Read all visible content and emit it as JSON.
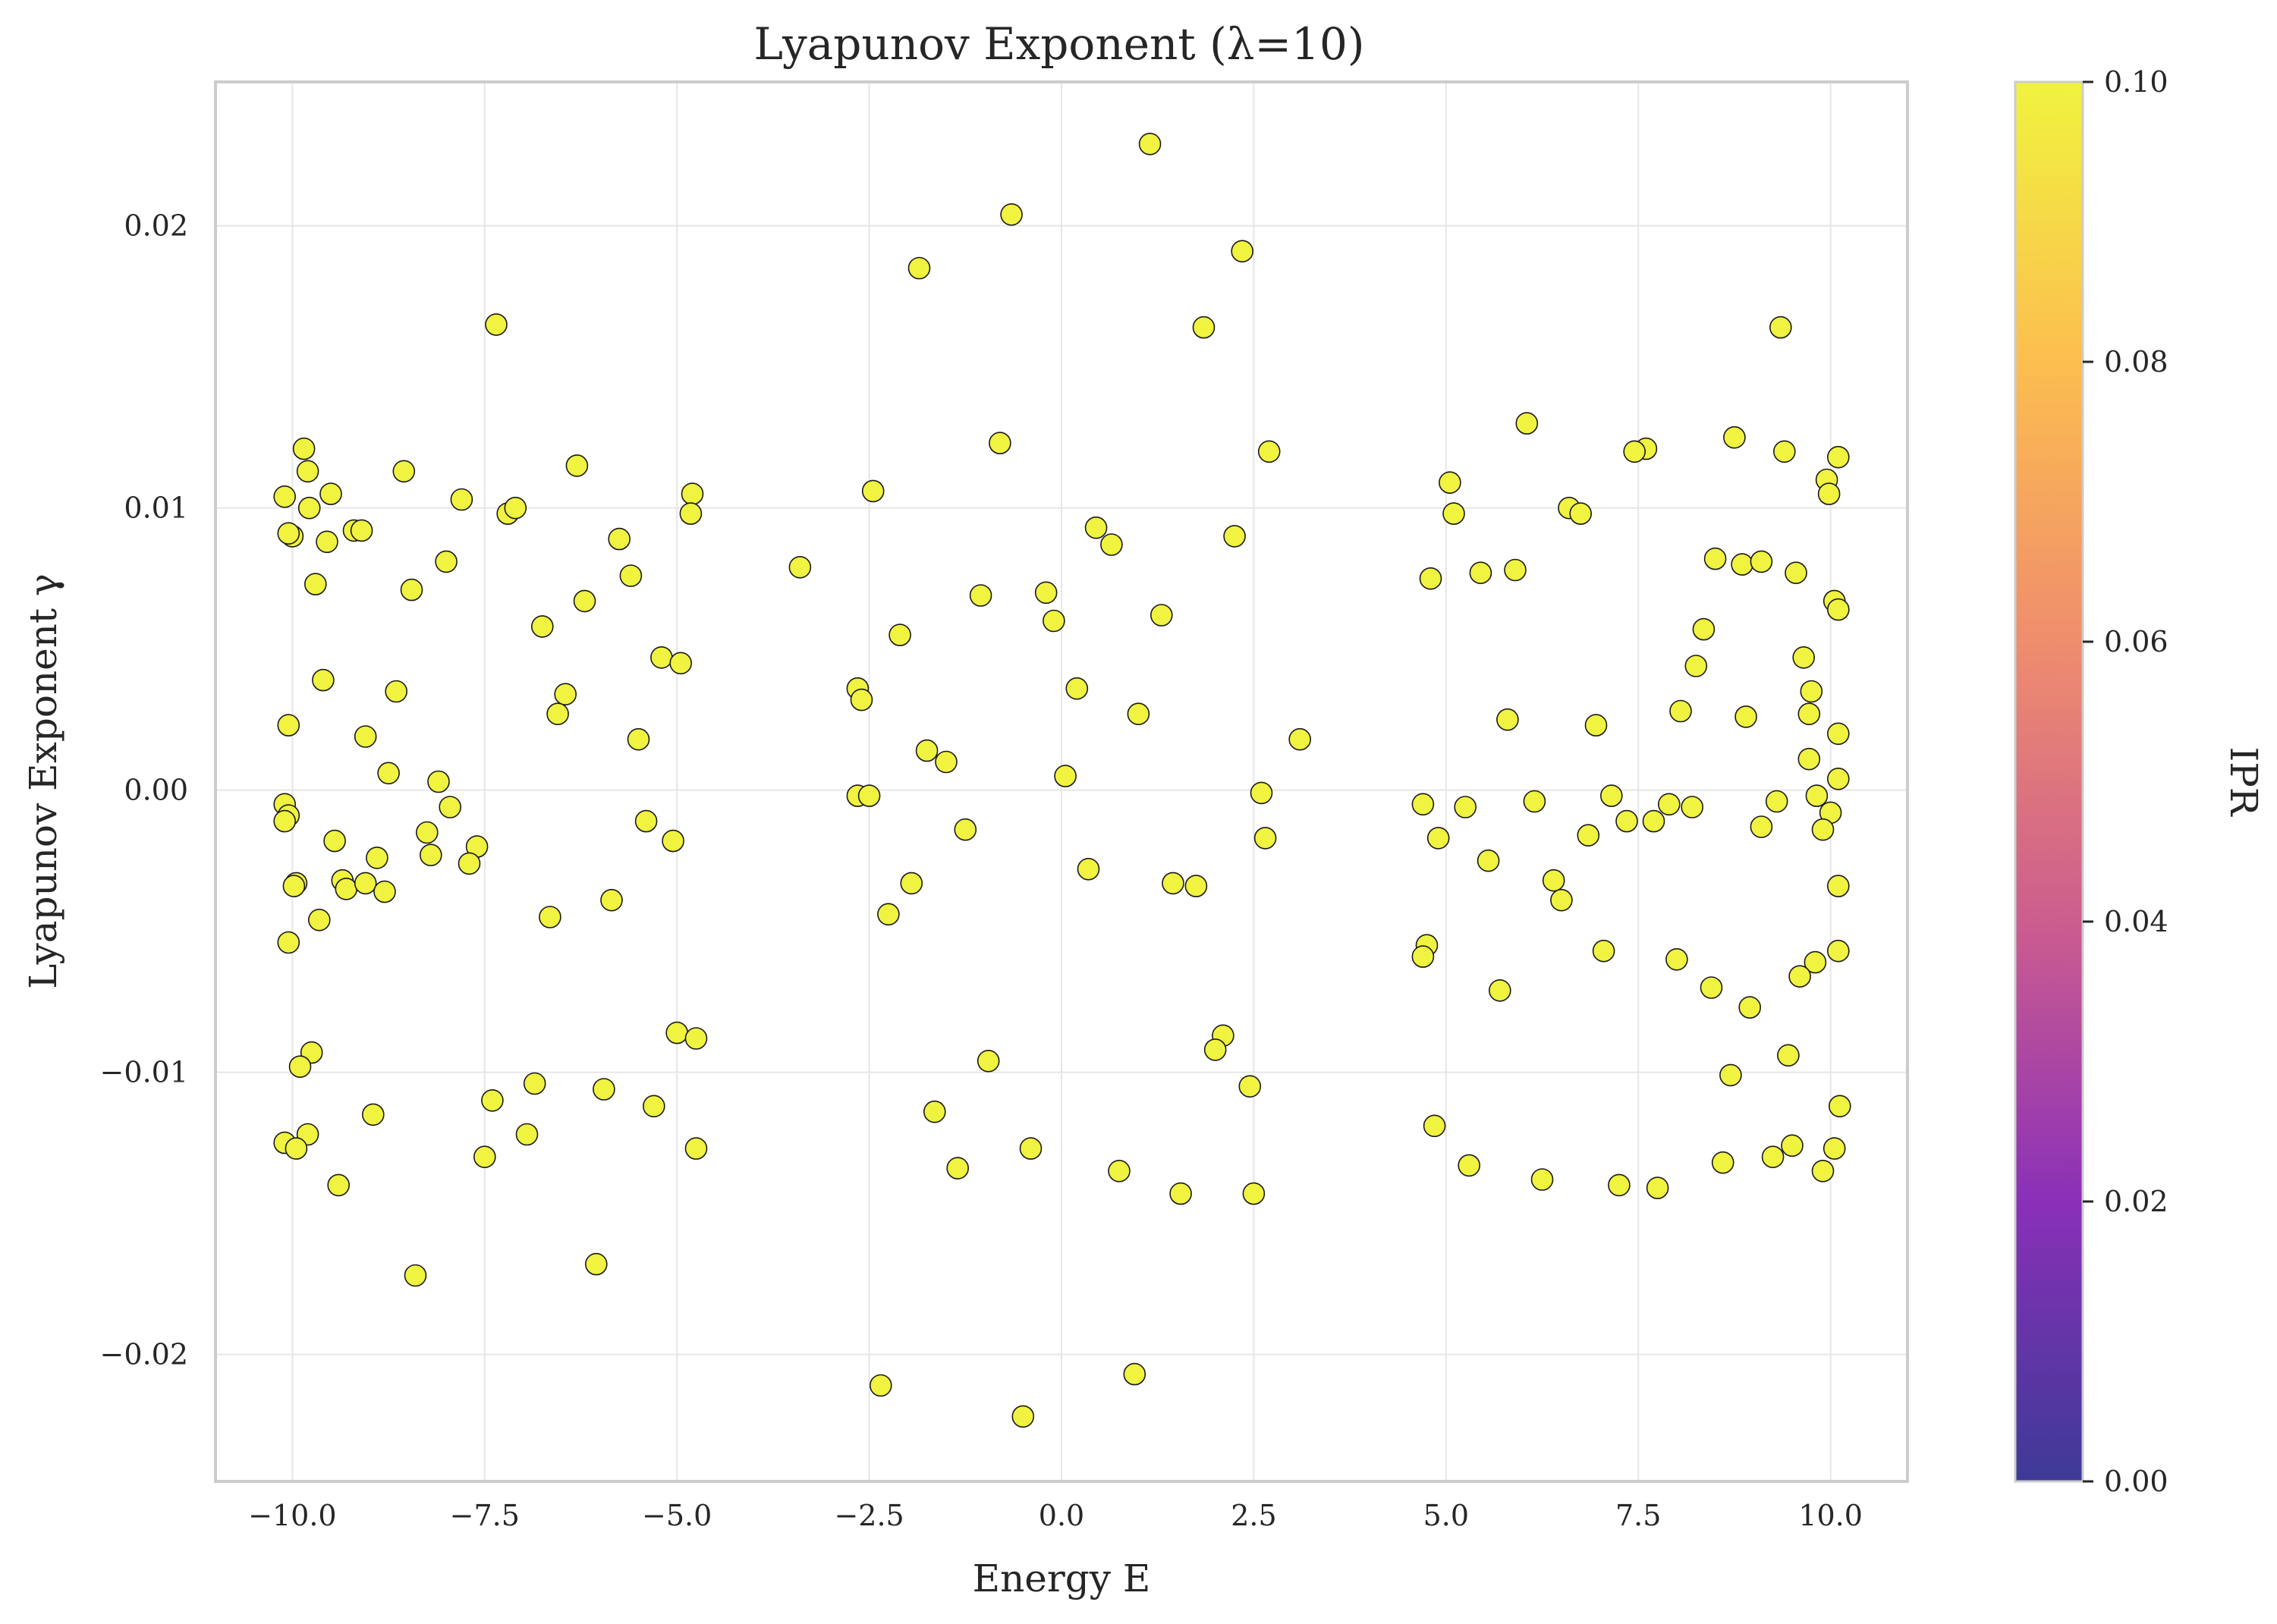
{
  "chart_data": {
    "type": "scatter",
    "title": "Lyapunov Exponent (λ=10)",
    "xlabel": "Energy E",
    "ylabel": "Lyapunov Exponent γ",
    "xlim": [
      -11.0,
      11.0
    ],
    "ylim": [
      -0.0245,
      0.0251
    ],
    "xticks": [
      -10.0,
      -7.5,
      -5.0,
      -2.5,
      0.0,
      2.5,
      5.0,
      7.5,
      10.0
    ],
    "xtick_labels": [
      "−10.0",
      "−7.5",
      "−5.0",
      "−2.5",
      "0.0",
      "2.5",
      "5.0",
      "7.5",
      "10.0"
    ],
    "yticks": [
      -0.02,
      -0.01,
      0.0,
      0.01,
      0.02
    ],
    "ytick_labels": [
      "−0.02",
      "−0.01",
      "0.00",
      "0.01",
      "0.02"
    ],
    "grid": true,
    "marker_color": "#f0f33f",
    "marker_edge_color": "#1a1a1a",
    "colorbar": {
      "label": "IPR",
      "range": [
        0.0,
        0.1
      ],
      "ticks": [
        0.0,
        0.02,
        0.04,
        0.06,
        0.08,
        0.1
      ],
      "tick_labels": [
        "0.00",
        "0.02",
        "0.04",
        "0.06",
        "0.08",
        "0.10"
      ],
      "colormap_stops": [
        "#3d3a96",
        "#8a30b8",
        "#cc5d8e",
        "#ef8d6d",
        "#fcbe4f",
        "#f0f33f"
      ]
    },
    "series": [
      {
        "points": [
          [
            1.15,
            0.0229
          ],
          [
            -0.65,
            0.0204
          ],
          [
            2.35,
            0.0191
          ],
          [
            -1.85,
            0.0185
          ],
          [
            1.85,
            0.0164
          ],
          [
            9.35,
            0.0164
          ],
          [
            -7.35,
            0.0165
          ],
          [
            6.05,
            0.013
          ],
          [
            8.75,
            0.0125
          ],
          [
            -0.8,
            0.0123
          ],
          [
            7.6,
            0.0121
          ],
          [
            7.45,
            0.012
          ],
          [
            9.4,
            0.012
          ],
          [
            10.1,
            0.0118
          ],
          [
            2.7,
            0.012
          ],
          [
            -9.85,
            0.0121
          ],
          [
            -9.8,
            0.0113
          ],
          [
            -8.55,
            0.0113
          ],
          [
            -6.3,
            0.0115
          ],
          [
            5.05,
            0.0109
          ],
          [
            9.95,
            0.011
          ],
          [
            9.98,
            0.0105
          ],
          [
            -2.45,
            0.0106
          ],
          [
            -4.8,
            0.0105
          ],
          [
            -4.82,
            0.0098
          ],
          [
            -9.5,
            0.0105
          ],
          [
            -10.1,
            0.0104
          ],
          [
            -9.78,
            0.01
          ],
          [
            -7.8,
            0.0103
          ],
          [
            -7.2,
            0.0098
          ],
          [
            -7.1,
            0.01
          ],
          [
            6.6,
            0.01
          ],
          [
            6.75,
            0.0098
          ],
          [
            5.1,
            0.0098
          ],
          [
            -10.0,
            0.009
          ],
          [
            -10.05,
            0.0091
          ],
          [
            -9.2,
            0.0092
          ],
          [
            -9.1,
            0.0092
          ],
          [
            -9.55,
            0.0088
          ],
          [
            -5.75,
            0.0089
          ],
          [
            2.25,
            0.009
          ],
          [
            0.45,
            0.0093
          ],
          [
            0.65,
            0.0087
          ],
          [
            8.5,
            0.0082
          ],
          [
            8.85,
            0.008
          ],
          [
            9.1,
            0.0081
          ],
          [
            -8.0,
            0.0081
          ],
          [
            -3.4,
            0.0079
          ],
          [
            5.45,
            0.0077
          ],
          [
            5.9,
            0.0078
          ],
          [
            9.55,
            0.0077
          ],
          [
            4.8,
            0.0075
          ],
          [
            -5.6,
            0.0076
          ],
          [
            -9.7,
            0.0073
          ],
          [
            -8.45,
            0.0071
          ],
          [
            -1.05,
            0.0069
          ],
          [
            -0.2,
            0.007
          ],
          [
            -6.2,
            0.0067
          ],
          [
            10.05,
            0.0067
          ],
          [
            10.1,
            0.0064
          ],
          [
            1.3,
            0.0062
          ],
          [
            -0.1,
            0.006
          ],
          [
            -6.75,
            0.0058
          ],
          [
            8.35,
            0.0057
          ],
          [
            -2.1,
            0.0055
          ],
          [
            9.65,
            0.0047
          ],
          [
            -5.2,
            0.0047
          ],
          [
            -4.95,
            0.0045
          ],
          [
            8.25,
            0.0044
          ],
          [
            -9.6,
            0.0039
          ],
          [
            -2.65,
            0.0036
          ],
          [
            0.2,
            0.0036
          ],
          [
            9.75,
            0.0035
          ],
          [
            -8.65,
            0.0035
          ],
          [
            -6.45,
            0.0034
          ],
          [
            -2.6,
            0.0032
          ],
          [
            8.05,
            0.0028
          ],
          [
            9.72,
            0.0027
          ],
          [
            1.0,
            0.0027
          ],
          [
            -6.55,
            0.0027
          ],
          [
            8.9,
            0.0026
          ],
          [
            5.8,
            0.0025
          ],
          [
            6.95,
            0.0023
          ],
          [
            -10.05,
            0.0023
          ],
          [
            10.1,
            0.002
          ],
          [
            -9.05,
            0.0019
          ],
          [
            -5.5,
            0.0018
          ],
          [
            3.1,
            0.0018
          ],
          [
            -1.75,
            0.0014
          ],
          [
            -1.5,
            0.001
          ],
          [
            9.72,
            0.0011
          ],
          [
            -8.75,
            0.0006
          ],
          [
            0.05,
            0.0005
          ],
          [
            10.1,
            0.0004
          ],
          [
            -8.1,
            0.0003
          ],
          [
            -2.65,
            -0.0002
          ],
          [
            -2.5,
            -0.0002
          ],
          [
            2.6,
            -0.0001
          ],
          [
            7.15,
            -0.0002
          ],
          [
            9.82,
            -0.0002
          ],
          [
            -10.1,
            -0.0005
          ],
          [
            -10.05,
            -0.0009
          ],
          [
            -10.1,
            -0.0011
          ],
          [
            -7.95,
            -0.0006
          ],
          [
            4.7,
            -0.0005
          ],
          [
            5.25,
            -0.0006
          ],
          [
            6.15,
            -0.0004
          ],
          [
            7.9,
            -0.0005
          ],
          [
            8.2,
            -0.0006
          ],
          [
            9.3,
            -0.0004
          ],
          [
            10.0,
            -0.0008
          ],
          [
            -5.4,
            -0.0011
          ],
          [
            7.35,
            -0.0011
          ],
          [
            7.7,
            -0.0011
          ],
          [
            9.1,
            -0.0013
          ],
          [
            -1.25,
            -0.0014
          ],
          [
            9.9,
            -0.0014
          ],
          [
            -8.25,
            -0.0015
          ],
          [
            2.65,
            -0.0017
          ],
          [
            6.85,
            -0.0016
          ],
          [
            -5.05,
            -0.0018
          ],
          [
            4.9,
            -0.0017
          ],
          [
            -9.45,
            -0.0018
          ],
          [
            -7.6,
            -0.002
          ],
          [
            -8.2,
            -0.0023
          ],
          [
            -8.9,
            -0.0024
          ],
          [
            5.55,
            -0.0025
          ],
          [
            -7.7,
            -0.0026
          ],
          [
            0.35,
            -0.0028
          ],
          [
            -9.95,
            -0.0033
          ],
          [
            -9.98,
            -0.0034
          ],
          [
            -9.35,
            -0.0032
          ],
          [
            -9.3,
            -0.0035
          ],
          [
            -9.05,
            -0.0033
          ],
          [
            -8.8,
            -0.0036
          ],
          [
            -1.95,
            -0.0033
          ],
          [
            1.45,
            -0.0033
          ],
          [
            1.75,
            -0.0034
          ],
          [
            6.4,
            -0.0032
          ],
          [
            6.5,
            -0.0039
          ],
          [
            10.1,
            -0.0034
          ],
          [
            -5.85,
            -0.0039
          ],
          [
            -2.25,
            -0.0044
          ],
          [
            -6.65,
            -0.0045
          ],
          [
            -9.65,
            -0.0046
          ],
          [
            -10.05,
            -0.0054
          ],
          [
            4.75,
            -0.0055
          ],
          [
            4.7,
            -0.0059
          ],
          [
            7.05,
            -0.0057
          ],
          [
            8.0,
            -0.006
          ],
          [
            9.8,
            -0.0061
          ],
          [
            10.1,
            -0.0057
          ],
          [
            9.6,
            -0.0066
          ],
          [
            5.7,
            -0.0071
          ],
          [
            8.45,
            -0.007
          ],
          [
            8.95,
            -0.0077
          ],
          [
            -5.0,
            -0.0086
          ],
          [
            -4.75,
            -0.0088
          ],
          [
            -9.75,
            -0.0093
          ],
          [
            -9.9,
            -0.0098
          ],
          [
            2.1,
            -0.0087
          ],
          [
            2.0,
            -0.0092
          ],
          [
            -0.95,
            -0.0096
          ],
          [
            9.45,
            -0.0094
          ],
          [
            8.7,
            -0.0101
          ],
          [
            -6.85,
            -0.0104
          ],
          [
            -5.95,
            -0.0106
          ],
          [
            2.45,
            -0.0105
          ],
          [
            -7.4,
            -0.011
          ],
          [
            -5.3,
            -0.0112
          ],
          [
            -8.95,
            -0.0115
          ],
          [
            -1.65,
            -0.0114
          ],
          [
            10.12,
            -0.0112
          ],
          [
            4.85,
            -0.0119
          ],
          [
            -9.8,
            -0.0122
          ],
          [
            -6.95,
            -0.0122
          ],
          [
            -10.1,
            -0.0125
          ],
          [
            -9.95,
            -0.0127
          ],
          [
            -4.75,
            -0.0127
          ],
          [
            -0.4,
            -0.0127
          ],
          [
            9.5,
            -0.0126
          ],
          [
            10.05,
            -0.0127
          ],
          [
            9.25,
            -0.013
          ],
          [
            8.6,
            -0.0132
          ],
          [
            -7.5,
            -0.013
          ],
          [
            -1.35,
            -0.0134
          ],
          [
            5.3,
            -0.0133
          ],
          [
            0.75,
            -0.0135
          ],
          [
            9.9,
            -0.0135
          ],
          [
            6.25,
            -0.0138
          ],
          [
            7.25,
            -0.014
          ],
          [
            7.75,
            -0.0141
          ],
          [
            -9.4,
            -0.014
          ],
          [
            1.55,
            -0.0143
          ],
          [
            2.5,
            -0.0143
          ],
          [
            -8.4,
            -0.0172
          ],
          [
            -6.05,
            -0.0168
          ],
          [
            0.95,
            -0.0207
          ],
          [
            -2.35,
            -0.0211
          ],
          [
            -0.5,
            -0.0222
          ]
        ]
      }
    ]
  }
}
